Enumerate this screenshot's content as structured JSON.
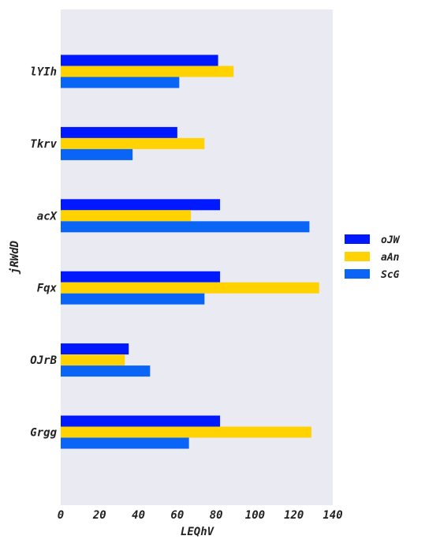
{
  "chart_data": {
    "type": "bar",
    "orientation": "horizontal",
    "categories": [
      "lYIh",
      "Tkrv",
      "acX",
      "Fqx",
      "OJrB",
      "Grgg"
    ],
    "series": [
      {
        "name": "oJW",
        "color": "#0019ff",
        "values": [
          81,
          60,
          82,
          82,
          35,
          82
        ]
      },
      {
        "name": "aAn",
        "color": "#ffd200",
        "values": [
          89,
          74,
          67,
          133,
          33,
          129
        ]
      },
      {
        "name": "ScG",
        "color": "#0a64f5",
        "values": [
          61,
          37,
          128,
          74,
          46,
          66
        ]
      }
    ],
    "xlabel": "LEQhV",
    "ylabel": "jRWdD",
    "xlim": [
      0,
      140
    ],
    "xticks": [
      0,
      20,
      40,
      60,
      80,
      100,
      120,
      140
    ],
    "grid": false,
    "background": "#e9eaf2",
    "legend_position": "right"
  }
}
